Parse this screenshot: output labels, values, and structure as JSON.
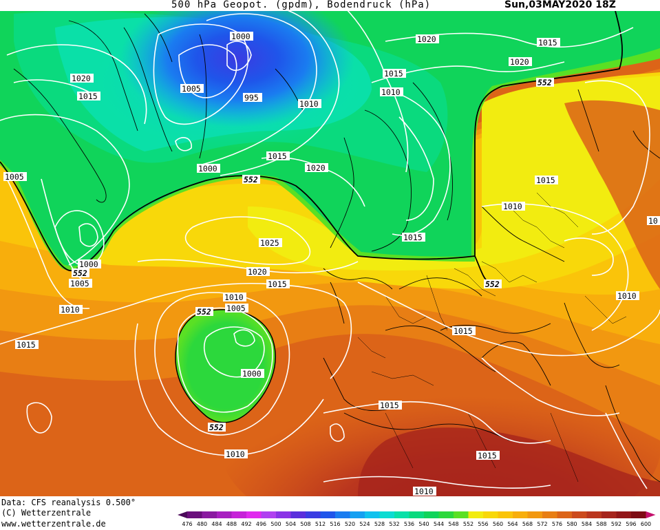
{
  "header": {
    "title": "500 hPa Geopot. (gpdm), Bodendruck (hPa)",
    "date": "Sun,03MAY2020 18Z"
  },
  "footer": {
    "data_source": "Data: CFS reanalysis 0.500°",
    "copyright": "(C) Wetterzentrale",
    "url": "www.wetterzentrale.de"
  },
  "legend": {
    "unit": "gpdm",
    "ticks": [
      "476",
      "480",
      "484",
      "488",
      "492",
      "496",
      "500",
      "504",
      "508",
      "512",
      "516",
      "520",
      "524",
      "528",
      "532",
      "536",
      "540",
      "544",
      "548",
      "552",
      "556",
      "560",
      "564",
      "568",
      "572",
      "576",
      "580",
      "584",
      "588",
      "592",
      "596",
      "600"
    ],
    "colors": [
      "#4b0a5a",
      "#6a0f7c",
      "#8a1aa0",
      "#a81fc0",
      "#c623d8",
      "#e02aee",
      "#b040f0",
      "#8a33e6",
      "#5a2edc",
      "#3a3ce2",
      "#1f55ea",
      "#1a7cf0",
      "#14a0f2",
      "#10c2ee",
      "#0cdcd2",
      "#0ae0a8",
      "#0ada7e",
      "#10d45a",
      "#2cd83c",
      "#5ae024",
      "#f2ec10",
      "#f8d80a",
      "#fac40a",
      "#f8ae0c",
      "#f29810",
      "#e87e14",
      "#dc6418",
      "#cc4a1c",
      "#ba361e",
      "#a6241c",
      "#921618",
      "#7e0c14",
      "#c4106c"
    ]
  },
  "isobars": [
    {
      "label": "1000",
      "kind": "pressure"
    },
    {
      "label": "995",
      "kind": "pressure"
    },
    {
      "label": "1005",
      "kind": "pressure"
    },
    {
      "label": "1010",
      "kind": "pressure"
    },
    {
      "label": "1015",
      "kind": "pressure"
    },
    {
      "label": "1020",
      "kind": "pressure"
    },
    {
      "label": "1020",
      "kind": "pressure"
    },
    {
      "label": "1015",
      "kind": "pressure"
    },
    {
      "label": "1020",
      "kind": "pressure"
    },
    {
      "label": "1015",
      "kind": "pressure"
    },
    {
      "label": "1010",
      "kind": "pressure"
    },
    {
      "label": "1015",
      "kind": "pressure"
    },
    {
      "label": "1020",
      "kind": "pressure"
    },
    {
      "label": "1000",
      "kind": "pressure"
    },
    {
      "label": "1005",
      "kind": "pressure"
    },
    {
      "label": "1025",
      "kind": "pressure"
    },
    {
      "label": "1020",
      "kind": "pressure"
    },
    {
      "label": "1015",
      "kind": "pressure"
    },
    {
      "label": "1000",
      "kind": "pressure"
    },
    {
      "label": "1005",
      "kind": "pressure"
    },
    {
      "label": "1010",
      "kind": "pressure"
    },
    {
      "label": "1015",
      "kind": "pressure"
    },
    {
      "label": "1010",
      "kind": "pressure"
    },
    {
      "label": "1005",
      "kind": "pressure"
    },
    {
      "label": "1000",
      "kind": "pressure"
    },
    {
      "label": "1010",
      "kind": "pressure"
    },
    {
      "label": "1015",
      "kind": "pressure"
    },
    {
      "label": "1015",
      "kind": "pressure"
    },
    {
      "label": "1015",
      "kind": "pressure"
    },
    {
      "label": "1010",
      "kind": "pressure"
    },
    {
      "label": "1015",
      "kind": "pressure"
    },
    {
      "label": "1010",
      "kind": "pressure"
    },
    {
      "label": "1010",
      "kind": "pressure"
    },
    {
      "label": "1015",
      "kind": "pressure"
    },
    {
      "label": "1010",
      "kind": "pressure"
    },
    {
      "label": "1010",
      "kind": "pressure"
    },
    {
      "label": "10",
      "kind": "pressure"
    }
  ],
  "geopotential_contours": [
    {
      "label": "552"
    },
    {
      "label": "552"
    },
    {
      "label": "552"
    },
    {
      "label": "552"
    },
    {
      "label": "552"
    },
    {
      "label": "552"
    },
    {
      "label": "552"
    }
  ]
}
